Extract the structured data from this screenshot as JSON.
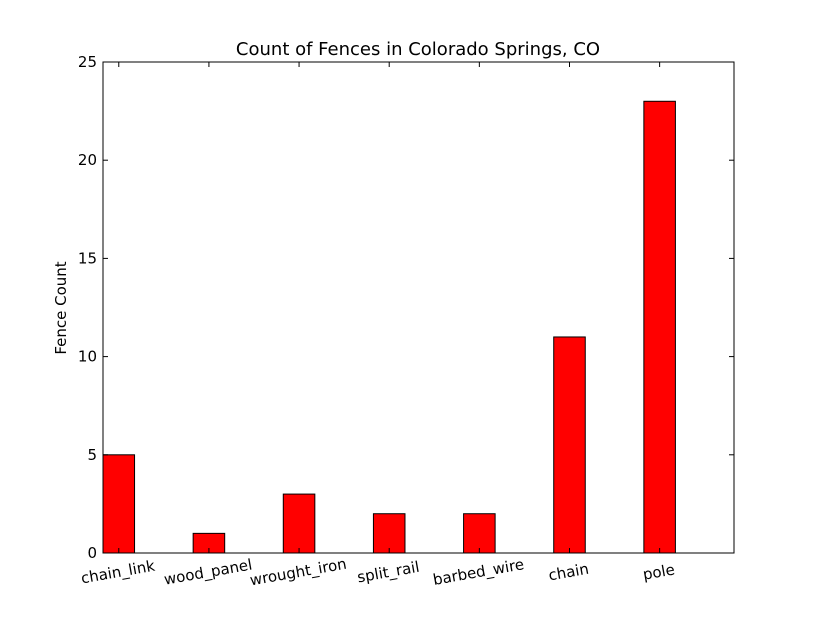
{
  "chart_data": {
    "type": "bar",
    "title": "Count of Fences in Colorado Springs, CO",
    "xlabel": "",
    "ylabel": "Fence Count",
    "categories": [
      "chain_link",
      "wood_panel",
      "wrought_iron",
      "split_rail",
      "barbed_wire",
      "chain",
      "pole"
    ],
    "values": [
      5,
      1,
      3,
      2,
      2,
      11,
      23
    ],
    "ylim": [
      0,
      25
    ],
    "yticks": [
      0,
      5,
      10,
      15,
      20,
      25
    ],
    "bar_color": "#ff0000",
    "edge_color": "#000000",
    "grid": false,
    "legend": "none"
  }
}
